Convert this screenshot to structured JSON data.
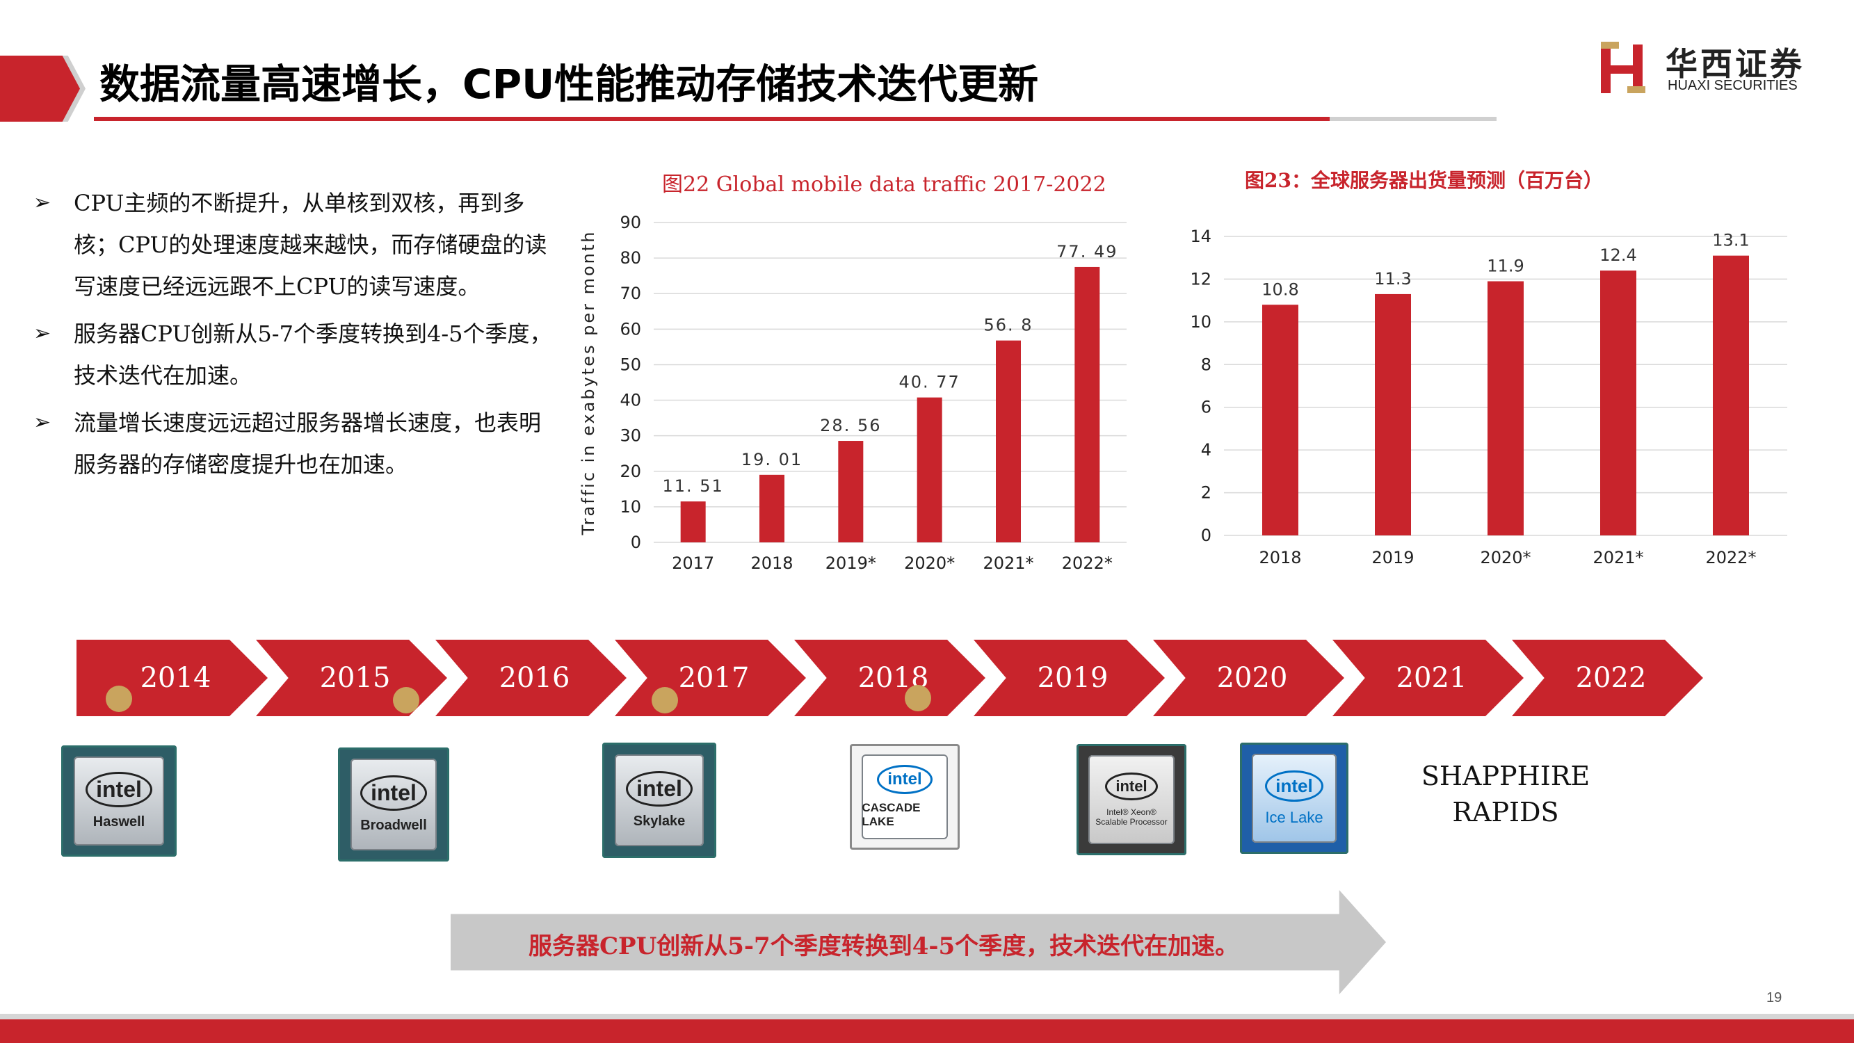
{
  "header": {
    "title": "数据流量高速增长，CPU性能推动存储技术迭代更新",
    "logo_cn": "华西证券",
    "logo_en": "HUAXI SECURITIES",
    "accent_color": "#c8242c"
  },
  "bullets": [
    "CPU主频的不断提升，从单核到双核，再到多核；CPU的处理速度越来越快，而存储硬盘的读写速度已经远远跟不上CPU的读写速度。",
    "服务器CPU创新从5-7个季度转换到4-5个季度，技术迭代在加速。",
    "流量增长速度远远超过服务器增长速度，也表明服务器的存储密度提升也在加速。"
  ],
  "chart_data": [
    {
      "type": "bar",
      "title": "图22 Global mobile data traffic 2017-2022",
      "xlabel": "",
      "ylabel": "Traffic in exabytes per month",
      "categories": [
        "2017",
        "2018",
        "2019*",
        "2020*",
        "2021*",
        "2022*"
      ],
      "values": [
        11.51,
        19.01,
        28.56,
        40.77,
        56.8,
        77.49
      ],
      "value_labels": [
        "11. 51",
        "19. 01",
        "28. 56",
        "40. 77",
        "56. 8",
        "77. 49"
      ],
      "ylim": [
        0,
        90
      ],
      "yticks": [
        0,
        10,
        20,
        30,
        40,
        50,
        60,
        70,
        80,
        90
      ],
      "grid": true,
      "color": "#c8242c"
    },
    {
      "type": "bar",
      "title": "图23：全球服务器出货量预测（百万台）",
      "xlabel": "",
      "ylabel": "",
      "categories": [
        "2018",
        "2019",
        "2020*",
        "2021*",
        "2022*"
      ],
      "values": [
        10.8,
        11.3,
        11.9,
        12.4,
        13.1
      ],
      "value_labels": [
        "10.8",
        "11.3",
        "11.9",
        "12.4",
        "13.1"
      ],
      "ylim": [
        0,
        14
      ],
      "yticks": [
        0,
        2,
        4,
        6,
        8,
        10,
        12,
        14
      ],
      "grid": true,
      "color": "#c8242c"
    }
  ],
  "timeline": {
    "years": [
      "2014",
      "2015",
      "2016",
      "2017",
      "2018",
      "2019",
      "2020",
      "2021",
      "2022"
    ],
    "chips": [
      {
        "brand": "intel",
        "name": "Haswell"
      },
      {
        "brand": "intel",
        "name": "Broadwell"
      },
      {
        "brand": "intel",
        "name": "Skylake"
      },
      {
        "brand": "intel",
        "name": "CASCADE LAKE"
      },
      {
        "brand": "intel",
        "name": "Intel® Xeon® Scalable Processor"
      },
      {
        "brand": "intel",
        "name": "Ice Lake"
      }
    ],
    "future_label": "SHAPPHIRE RAPIDS"
  },
  "bottom_banner": "服务器CPU创新从5-7个季度转换到4-5个季度，技术迭代在加速。",
  "page_number": "19"
}
